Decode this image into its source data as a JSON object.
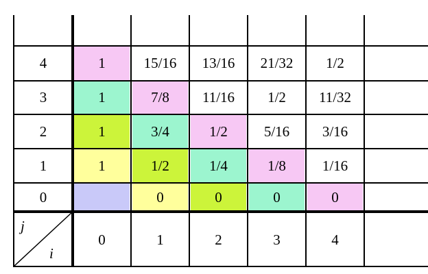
{
  "table": {
    "corner": {
      "top_label": "j",
      "bottom_label": "i"
    },
    "column_headers": [
      "0",
      "1",
      "2",
      "3",
      "4"
    ],
    "row_headers": [
      "4",
      "3",
      "2",
      "1",
      "0"
    ],
    "rows": [
      [
        "1",
        "15/16",
        "13/16",
        "21/32",
        "1/2"
      ],
      [
        "1",
        "7/8",
        "11/16",
        "1/2",
        "11/32"
      ],
      [
        "1",
        "3/4",
        "1/2",
        "5/16",
        "3/16"
      ],
      [
        "1",
        "1/2",
        "1/4",
        "1/8",
        "1/16"
      ],
      [
        "",
        "0",
        "0",
        "0",
        "0"
      ]
    ],
    "fills": [
      [
        "#f7c8f4",
        "",
        "",
        "",
        ""
      ],
      [
        "#9cf5cf",
        "#f7c8f4",
        "",
        "",
        ""
      ],
      [
        "#ccf43a",
        "#9cf5cf",
        "#f7c8f4",
        "",
        ""
      ],
      [
        "#ffff9c",
        "#ccf43a",
        "#9cf5cf",
        "#f7c8f4",
        ""
      ],
      [
        "#c9c9f9",
        "#ffff9c",
        "#ccf43a",
        "#9cf5cf",
        "#f7c8f4"
      ]
    ]
  }
}
